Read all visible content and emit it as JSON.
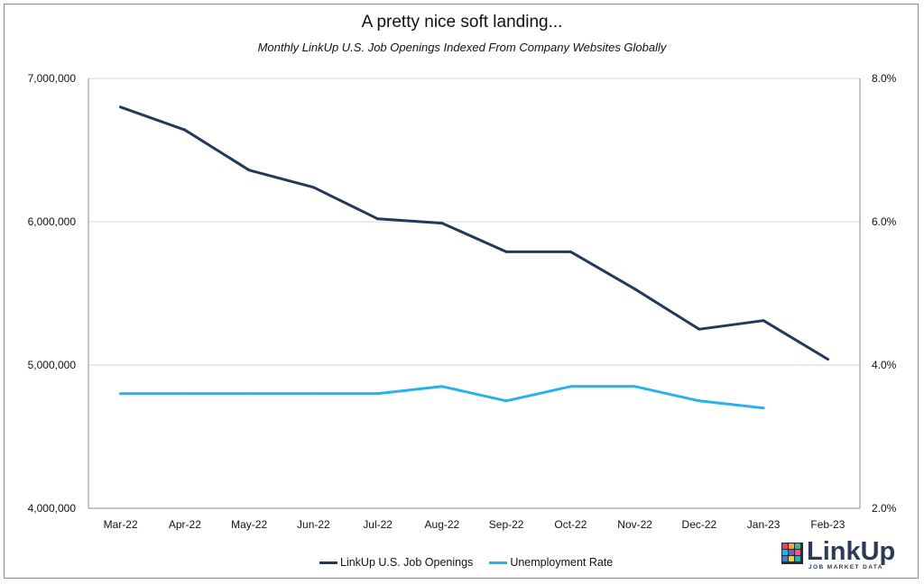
{
  "chart_data": {
    "type": "line",
    "title": "A pretty nice soft landing...",
    "subtitle": "Monthly LinkUp U.S. Job Openings Indexed From Company Websites Globally",
    "categories": [
      "Mar-22",
      "Apr-22",
      "May-22",
      "Jun-22",
      "Jul-22",
      "Aug-22",
      "Sep-22",
      "Oct-22",
      "Nov-22",
      "Dec-22",
      "Jan-23",
      "Feb-23"
    ],
    "y_left": {
      "min": 4000000,
      "max": 7000000,
      "ticks": [
        4000000,
        5000000,
        6000000,
        7000000
      ],
      "tick_labels": [
        "4,000,000",
        "5,000,000",
        "6,000,000",
        "7,000,000"
      ]
    },
    "y_right": {
      "min": 2.0,
      "max": 8.0,
      "ticks": [
        2.0,
        4.0,
        6.0,
        8.0
      ],
      "tick_labels": [
        "2.0%",
        "4.0%",
        "6.0%",
        "8.0%"
      ]
    },
    "grid": true,
    "legend_position": "bottom",
    "series": [
      {
        "name": "LinkUp U.S. Job Openings",
        "axis": "left",
        "color": "#24395a",
        "values": [
          6800000,
          6640000,
          6360000,
          6240000,
          6020000,
          5990000,
          5790000,
          5790000,
          5530000,
          5250000,
          5310000,
          5040000
        ]
      },
      {
        "name": "Unemployment Rate",
        "axis": "right",
        "color": "#29b2e8",
        "values": [
          3.6,
          3.6,
          3.6,
          3.6,
          3.6,
          3.7,
          3.5,
          3.7,
          3.7,
          3.5,
          3.4,
          null
        ]
      }
    ]
  },
  "logo": {
    "name": "LinkUp",
    "tagline": "JOB MARKET DATA",
    "colors": [
      "#e2445c",
      "#f7a23b",
      "#4cb86b",
      "#29b2e8",
      "#7b5ea7",
      "#f05a8c",
      "#3f7fd8",
      "#f3d12f",
      "#2bb3a4"
    ]
  }
}
